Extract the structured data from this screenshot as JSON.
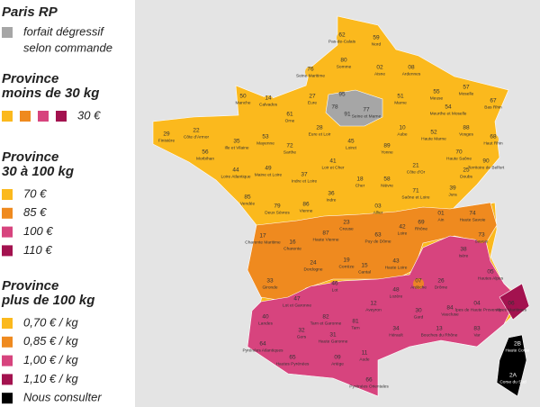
{
  "zone_colors": {
    "paris": "#a6a6a6",
    "t1": "#fbb91d",
    "t2": "#ef8a1f",
    "t3": "#d7447e",
    "t4": "#a3124f",
    "corse": "#000000"
  },
  "legend": [
    {
      "title": [
        "Paris RP"
      ],
      "rows": [
        {
          "swatches": [
            "paris"
          ],
          "lines": [
            "forfait dégressif",
            "selon commande"
          ]
        }
      ]
    },
    {
      "title": [
        "Province",
        "moins de 30 kg"
      ],
      "rows": [
        {
          "swatches": [
            "t1",
            "t2",
            "t3",
            "t4"
          ],
          "lines": [
            "30 €"
          ]
        }
      ]
    },
    {
      "title": [
        "Province",
        "30 à 100 kg"
      ],
      "rows": [
        {
          "swatches": [
            "t1"
          ],
          "lines": [
            "70 €"
          ]
        },
        {
          "swatches": [
            "t2"
          ],
          "lines": [
            "85 €"
          ]
        },
        {
          "swatches": [
            "t3"
          ],
          "lines": [
            "100 €"
          ]
        },
        {
          "swatches": [
            "t4"
          ],
          "lines": [
            "110 €"
          ]
        }
      ]
    },
    {
      "title": [
        "Province",
        "plus de 100 kg"
      ],
      "rows": [
        {
          "swatches": [
            "t1"
          ],
          "lines": [
            "0,70 € / kg"
          ]
        },
        {
          "swatches": [
            "t2"
          ],
          "lines": [
            "0,85 € / kg"
          ]
        },
        {
          "swatches": [
            "t3"
          ],
          "lines": [
            "1,00 € / kg"
          ]
        },
        {
          "swatches": [
            "t4"
          ],
          "lines": [
            "1,10 € / kg"
          ]
        },
        {
          "swatches": [
            "corse"
          ],
          "lines": [
            "Nous consulter"
          ]
        }
      ]
    }
  ],
  "map": {
    "departments": [
      {
        "code": "62",
        "name": "Pas-de-Calais",
        "zone": "t1"
      },
      {
        "code": "59",
        "name": "Nord",
        "zone": "t1"
      },
      {
        "code": "80",
        "name": "Somme",
        "zone": "t1"
      },
      {
        "code": "76",
        "name": "Seine Maritime",
        "zone": "t1"
      },
      {
        "code": "02",
        "name": "Aisne",
        "zone": "t1"
      },
      {
        "code": "08",
        "name": "Ardennes",
        "zone": "t1"
      },
      {
        "code": "50",
        "name": "Manche",
        "zone": "t1"
      },
      {
        "code": "14",
        "name": "Calvados",
        "zone": "t1"
      },
      {
        "code": "27",
        "name": "Eure",
        "zone": "t1"
      },
      {
        "code": "95",
        "name": "",
        "zone": "paris"
      },
      {
        "code": "78",
        "name": "",
        "zone": "paris"
      },
      {
        "code": "91",
        "name": "",
        "zone": "paris"
      },
      {
        "code": "77",
        "name": "Seine et Marne",
        "zone": "paris"
      },
      {
        "code": "51",
        "name": "Marne",
        "zone": "t1"
      },
      {
        "code": "55",
        "name": "Meuse",
        "zone": "t1"
      },
      {
        "code": "57",
        "name": "Moselle",
        "zone": "t1"
      },
      {
        "code": "54",
        "name": "Meurthe et Moselle",
        "zone": "t1"
      },
      {
        "code": "67",
        "name": "Bas Rhin",
        "zone": "t1"
      },
      {
        "code": "88",
        "name": "Vosges",
        "zone": "t1"
      },
      {
        "code": "68",
        "name": "Haut Rhin",
        "zone": "t1"
      },
      {
        "code": "29",
        "name": "Finistère",
        "zone": "t1"
      },
      {
        "code": "22",
        "name": "Côte d'Armor",
        "zone": "t1"
      },
      {
        "code": "35",
        "name": "Ille et Vilaine",
        "zone": "t1"
      },
      {
        "code": "61",
        "name": "Orne",
        "zone": "t1"
      },
      {
        "code": "28",
        "name": "Eure et Loir",
        "zone": "t1"
      },
      {
        "code": "10",
        "name": "Aube",
        "zone": "t1"
      },
      {
        "code": "52",
        "name": "Haute Marne",
        "zone": "t1"
      },
      {
        "code": "56",
        "name": "Morbihan",
        "zone": "t1"
      },
      {
        "code": "53",
        "name": "Mayenne",
        "zone": "t1"
      },
      {
        "code": "72",
        "name": "Sarthe",
        "zone": "t1"
      },
      {
        "code": "45",
        "name": "Loiret",
        "zone": "t1"
      },
      {
        "code": "89",
        "name": "Yonne",
        "zone": "t1"
      },
      {
        "code": "70",
        "name": "Haute Saône",
        "zone": "t1"
      },
      {
        "code": "90",
        "name": "Territoire de Belfort",
        "zone": "t1"
      },
      {
        "code": "25",
        "name": "Doubs",
        "zone": "t1"
      },
      {
        "code": "21",
        "name": "Côte d'Or",
        "zone": "t1"
      },
      {
        "code": "44",
        "name": "Loire Atlantique",
        "zone": "t1"
      },
      {
        "code": "49",
        "name": "Maine et Loire",
        "zone": "t1"
      },
      {
        "code": "37",
        "name": "Indre et Loire",
        "zone": "t1"
      },
      {
        "code": "41",
        "name": "Loir et Cher",
        "zone": "t1"
      },
      {
        "code": "18",
        "name": "Cher",
        "zone": "t1"
      },
      {
        "code": "58",
        "name": "Nièvre",
        "zone": "t1"
      },
      {
        "code": "71",
        "name": "Saône et Loire",
        "zone": "t1"
      },
      {
        "code": "39",
        "name": "Jura",
        "zone": "t1"
      },
      {
        "code": "85",
        "name": "Vendée",
        "zone": "t1"
      },
      {
        "code": "79",
        "name": "Deux Sèvres",
        "zone": "t1"
      },
      {
        "code": "86",
        "name": "Vienne",
        "zone": "t1"
      },
      {
        "code": "36",
        "name": "Indre",
        "zone": "t1"
      },
      {
        "code": "03",
        "name": "Allier",
        "zone": "t1"
      },
      {
        "code": "01",
        "name": "Ain",
        "zone": "t2"
      },
      {
        "code": "74",
        "name": "Haute Savoie",
        "zone": "t2"
      },
      {
        "code": "17",
        "name": "Charente Maritime",
        "zone": "t2"
      },
      {
        "code": "16",
        "name": "Charente",
        "zone": "t2"
      },
      {
        "code": "87",
        "name": "Haute Vienne",
        "zone": "t2"
      },
      {
        "code": "23",
        "name": "Creuse",
        "zone": "t2"
      },
      {
        "code": "63",
        "name": "Puy de Dôme",
        "zone": "t2"
      },
      {
        "code": "42",
        "name": "Loire",
        "zone": "t2"
      },
      {
        "code": "69",
        "name": "Rhône",
        "zone": "t2"
      },
      {
        "code": "73",
        "name": "Savoie",
        "zone": "t2"
      },
      {
        "code": "24",
        "name": "Dordogne",
        "zone": "t2"
      },
      {
        "code": "19",
        "name": "Corrèze",
        "zone": "t2"
      },
      {
        "code": "15",
        "name": "Cantal",
        "zone": "t2"
      },
      {
        "code": "43",
        "name": "Haute Loire",
        "zone": "t2"
      },
      {
        "code": "33",
        "name": "Gironde",
        "zone": "t2"
      },
      {
        "code": "07",
        "name": "Ardèche",
        "zone": "t2"
      },
      {
        "code": "38",
        "name": "Isère",
        "zone": "t3"
      },
      {
        "code": "26",
        "name": "Drôme",
        "zone": "t3"
      },
      {
        "code": "05",
        "name": "Hautes Alpes",
        "zone": "t3"
      },
      {
        "code": "46",
        "name": "Lot",
        "zone": "t3"
      },
      {
        "code": "47",
        "name": "Lot et Garonne",
        "zone": "t3"
      },
      {
        "code": "12",
        "name": "Aveyron",
        "zone": "t3"
      },
      {
        "code": "48",
        "name": "Lozère",
        "zone": "t3"
      },
      {
        "code": "04",
        "name": "Alpes de Haute Provence",
        "zone": "t3"
      },
      {
        "code": "06",
        "name": "Alpes Maritimes",
        "zone": "t4"
      },
      {
        "code": "40",
        "name": "Landes",
        "zone": "t3"
      },
      {
        "code": "82",
        "name": "Tarn et Garonne",
        "zone": "t3"
      },
      {
        "code": "81",
        "name": "Tarn",
        "zone": "t3"
      },
      {
        "code": "30",
        "name": "Gard",
        "zone": "t3"
      },
      {
        "code": "84",
        "name": "Vaucluse",
        "zone": "t3"
      },
      {
        "code": "13",
        "name": "Bouches du Rhône",
        "zone": "t3"
      },
      {
        "code": "83",
        "name": "Var",
        "zone": "t3"
      },
      {
        "code": "32",
        "name": "Gers",
        "zone": "t3"
      },
      {
        "code": "31",
        "name": "Haute Garonne",
        "zone": "t3"
      },
      {
        "code": "34",
        "name": "Hérault",
        "zone": "t3"
      },
      {
        "code": "64",
        "name": "Pyrénées Atlantiques",
        "zone": "t3"
      },
      {
        "code": "65",
        "name": "Hautes Pyrénées",
        "zone": "t3"
      },
      {
        "code": "09",
        "name": "Ariège",
        "zone": "t3"
      },
      {
        "code": "11",
        "name": "Aude",
        "zone": "t3"
      },
      {
        "code": "66",
        "name": "Pyrénées Orientales",
        "zone": "t3"
      },
      {
        "code": "2B",
        "name": "Haute Corse",
        "zone": "corse"
      },
      {
        "code": "2A",
        "name": "Corse du Sud",
        "zone": "corse"
      }
    ]
  }
}
